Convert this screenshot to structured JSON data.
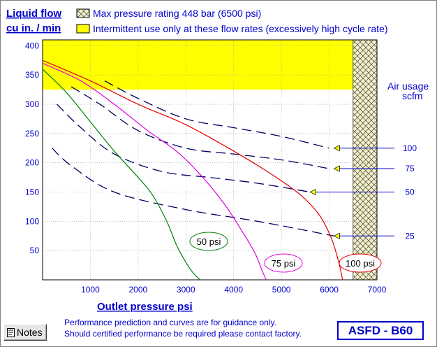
{
  "chart_data": {
    "type": "line",
    "ylabel_line1": "Liquid flow",
    "ylabel_line2": "cu in. / min",
    "xlabel": "Outlet pressure   psi",
    "xlim": [
      0,
      7000
    ],
    "ylim": [
      0,
      410
    ],
    "x_ticks": [
      1000,
      2000,
      3000,
      4000,
      5000,
      6000,
      7000
    ],
    "y_ticks": [
      50,
      100,
      150,
      200,
      250,
      300,
      350,
      400
    ],
    "legend": [
      {
        "name": "Max pressure rating 448 bar (6500 psi)",
        "pattern": "crosshatch",
        "color": "#c8c8a0"
      },
      {
        "name": "Intermittent use only at these flow rates (excessively high cycle rate)",
        "pattern": "solid",
        "color": "#ffff00"
      }
    ],
    "zones": {
      "intermittent_flow_min": 325,
      "max_pressure_psi": 6500
    },
    "flow_series": [
      {
        "name": "50 psi",
        "color": "#008000",
        "x": [
          0,
          500,
          1000,
          1500,
          2000,
          2300,
          2600,
          2800,
          3000,
          3150,
          3300
        ],
        "y": [
          360,
          320,
          270,
          220,
          175,
          145,
          100,
          60,
          30,
          12,
          0
        ]
      },
      {
        "name": "75 psi",
        "color": "#e000e0",
        "x": [
          0,
          800,
          1500,
          2200,
          2800,
          3300,
          3800,
          4200,
          4450,
          4600,
          4680
        ],
        "y": [
          370,
          340,
          300,
          255,
          220,
          180,
          130,
          80,
          45,
          15,
          0
        ]
      },
      {
        "name": "100 psi",
        "color": "#e00000",
        "x": [
          0,
          1000,
          2000,
          3000,
          4000,
          4800,
          5400,
          5800,
          6050,
          6200,
          6280
        ],
        "y": [
          375,
          340,
          300,
          265,
          220,
          180,
          145,
          110,
          70,
          30,
          0
        ]
      }
    ],
    "air_usage": {
      "title_line1": "Air usage",
      "title_line2": "scfm",
      "series": [
        {
          "name": "100",
          "x": [
            1300,
            2000,
            3000,
            4000,
            5000,
            6000
          ],
          "y": [
            340,
            310,
            275,
            260,
            245,
            225
          ]
        },
        {
          "name": "75",
          "x": [
            600,
            1200,
            2000,
            3000,
            4000,
            5000,
            6000
          ],
          "y": [
            330,
            300,
            255,
            225,
            215,
            205,
            190
          ]
        },
        {
          "name": "50",
          "x": [
            300,
            800,
            1500,
            2500,
            3500,
            4500,
            5600
          ],
          "y": [
            300,
            260,
            215,
            185,
            175,
            165,
            150
          ]
        },
        {
          "name": "25",
          "x": [
            200,
            600,
            1500,
            3000,
            4500,
            6100
          ],
          "y": [
            225,
            195,
            150,
            120,
            100,
            75
          ]
        }
      ],
      "marker_y": [
        225,
        190,
        150,
        75
      ],
      "marker_x": [
        6100,
        6100,
        5600,
        6100
      ]
    },
    "curve_labels": [
      "50 psi",
      "75 psi",
      "100 psi"
    ]
  },
  "notes_button_label": "Notes",
  "disclaimer_line1": "Performance prediction and curves are for guidance only.",
  "disclaimer_line2": "Should certified performance be required please contact factory.",
  "model": "ASFD - B60"
}
